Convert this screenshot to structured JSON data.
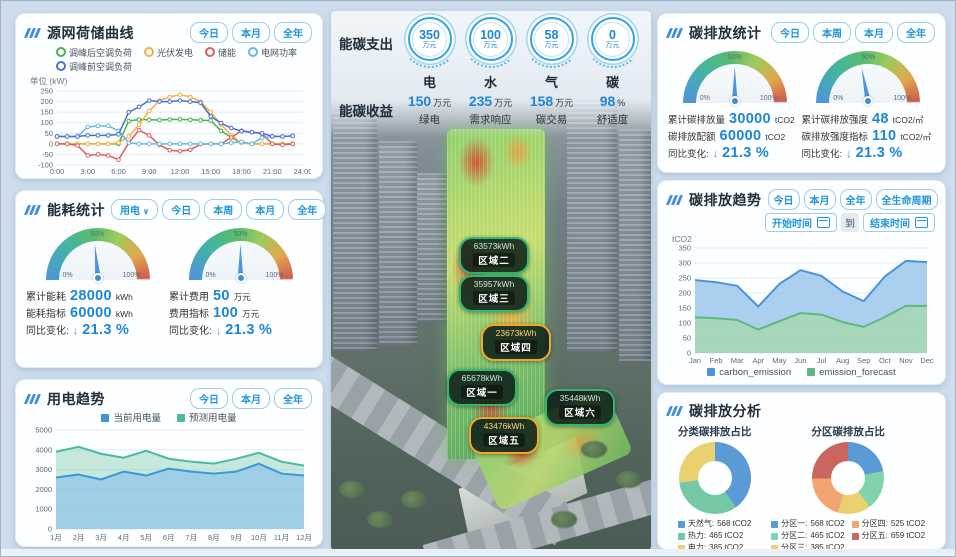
{
  "icons": {
    "down_arrow": "↓",
    "chevron_down": "∨"
  },
  "left": {
    "grid_curve": {
      "title": "源网荷储曲线",
      "buttons": [
        "今日",
        "本月",
        "全年"
      ]
    },
    "energy_stats": {
      "title": "能耗统计",
      "dropdown": "用电",
      "buttons": [
        "今日",
        "本周",
        "本月",
        "全年"
      ],
      "gauges": [
        {
          "pct": 47,
          "p0": "0%",
          "p50": "50%",
          "p100": "100%",
          "rows": [
            {
              "label": "累计能耗",
              "value": "28000",
              "unit": "kWh"
            },
            {
              "label": "能耗指标",
              "value": "60000",
              "unit": "kWh"
            }
          ],
          "yoy_label": "同比变化:",
          "yoy_value": "21.3 %"
        },
        {
          "pct": 50,
          "p0": "0%",
          "p50": "50%",
          "p100": "100%",
          "rows": [
            {
              "label": "累计费用",
              "value": "50",
              "unit": "万元"
            },
            {
              "label": "费用指标",
              "value": "100",
              "unit": "万元"
            }
          ],
          "yoy_label": "同比变化:",
          "yoy_value": "21.3 %"
        }
      ]
    },
    "power_trend": {
      "title": "用电趋势",
      "buttons": [
        "今日",
        "本月",
        "全年"
      ]
    }
  },
  "center": {
    "expense_label": "能碳支出",
    "income_label": "能碳收益",
    "expense_items": [
      {
        "value": "350",
        "unit": "万元",
        "name": "电"
      },
      {
        "value": "100",
        "unit": "万元",
        "name": "水"
      },
      {
        "value": "58",
        "unit": "万元",
        "name": "气"
      },
      {
        "value": "0",
        "unit": "万元",
        "name": "碳"
      }
    ],
    "income_items": [
      {
        "value": "150",
        "unit": "万元",
        "name": "绿电"
      },
      {
        "value": "235",
        "unit": "万元",
        "name": "需求响应"
      },
      {
        "value": "158",
        "unit": "万元",
        "name": "碳交易"
      },
      {
        "value": "98",
        "unit": "%",
        "name": "舒适度"
      }
    ],
    "regions": [
      {
        "kwh": "63573kWh",
        "name": "区域二",
        "border": "#2eb872"
      },
      {
        "kwh": "35957kWh",
        "name": "区域三",
        "border": "#2eb872"
      },
      {
        "kwh": "23673kWh",
        "name": "区域四",
        "border": "#f0a828"
      },
      {
        "kwh": "65678kWh",
        "name": "区域一",
        "border": "#2eb872"
      },
      {
        "kwh": "35448kWh",
        "name": "区域六",
        "border": "#2eb872"
      },
      {
        "kwh": "43476kWh",
        "name": "区域五",
        "border": "#f0a828"
      }
    ]
  },
  "right": {
    "carbon_stats": {
      "title": "碳排放统计",
      "buttons": [
        "今日",
        "本周",
        "本月",
        "全年"
      ],
      "gauges": [
        {
          "pct": 50,
          "p0": "0%",
          "p50": "50%",
          "p100": "100%",
          "rows": [
            {
              "label": "累计碳排放量",
              "value": "30000",
              "unit": "tCO2"
            },
            {
              "label": "碳排放配额",
              "value": "60000",
              "unit": "tCO2"
            }
          ],
          "yoy_label": "同比变化:",
          "yoy_value": "21.3 %"
        },
        {
          "pct": 44,
          "p0": "0%",
          "p50": "50%",
          "p100": "100%",
          "rows": [
            {
              "label": "累计碳排放强度",
              "value": "48",
              "unit": "tCO2/㎡"
            },
            {
              "label": "碳排放强度指标",
              "value": "110",
              "unit": "tCO2/㎡"
            }
          ],
          "yoy_label": "同比变化:",
          "yoy_value": "21.3 %"
        }
      ]
    },
    "carbon_trend": {
      "title": "碳排放趋势",
      "buttons": [
        "今日",
        "本月",
        "全年",
        "全生命周期"
      ],
      "start_label": "开始时间",
      "to_label": "到",
      "end_label": "结束时间"
    },
    "carbon_analysis": {
      "title": "碳排放分析"
    }
  },
  "chart_data": [
    {
      "id": "grid_curve",
      "type": "line",
      "title": "源网荷储曲线",
      "ylabel": "单位 (kW)",
      "ylim": [
        -100,
        250
      ],
      "yticks": [
        250,
        200,
        150,
        100,
        50,
        0,
        -50,
        -100
      ],
      "xmax": 24,
      "x_labels": [
        "0:00",
        "3:00",
        "6:00",
        "9:00",
        "12:00",
        "15:00",
        "18:00",
        "21:00",
        "24:00"
      ],
      "series": [
        {
          "name": "调峰后空调负荷",
          "color": "#4caf50",
          "marker": true,
          "values": [
            0,
            0,
            0,
            0,
            0,
            0,
            0,
            108,
            115,
            114,
            113,
            115,
            116,
            114,
            112,
            110,
            62,
            30,
            5,
            0,
            0,
            0,
            0,
            0
          ]
        },
        {
          "name": "光伏发电",
          "color": "#f5b041",
          "marker": true,
          "values": [
            0,
            0,
            0,
            0,
            0,
            0,
            5,
            35,
            90,
            155,
            205,
            222,
            232,
            222,
            200,
            150,
            92,
            40,
            5,
            0,
            0,
            0,
            0,
            0
          ]
        },
        {
          "name": "储能",
          "color": "#e05c5c",
          "marker": true,
          "values": [
            0,
            0,
            -8,
            -55,
            -50,
            -55,
            -75,
            5,
            65,
            40,
            -5,
            -30,
            -35,
            -28,
            -2,
            0,
            0,
            30,
            62,
            55,
            48,
            0,
            -5,
            0
          ]
        },
        {
          "name": "电网功率",
          "color": "#64b9e4",
          "marker": true,
          "values": [
            35,
            35,
            35,
            80,
            85,
            85,
            62,
            5,
            0,
            0,
            0,
            0,
            0,
            0,
            0,
            0,
            0,
            5,
            10,
            0,
            28,
            35,
            35,
            38
          ]
        },
        {
          "name": "调峰前空调负荷",
          "color": "#4a6fd0",
          "marker": true,
          "values": [
            35,
            35,
            35,
            40,
            40,
            40,
            45,
            150,
            175,
            205,
            200,
            200,
            205,
            200,
            195,
            130,
            98,
            75,
            60,
            55,
            50,
            36,
            35,
            38
          ]
        }
      ]
    },
    {
      "id": "power_trend",
      "type": "area",
      "title": "用电趋势",
      "ylim": [
        0,
        5000
      ],
      "yticks": [
        5000,
        4000,
        3000,
        2000,
        1000,
        0
      ],
      "categories": [
        "1月",
        "2月",
        "3月",
        "4月",
        "5月",
        "6月",
        "7月",
        "8月",
        "9月",
        "10月",
        "11月",
        "12月"
      ],
      "series": [
        {
          "name": "预测用电量",
          "color": "#4cb8a4",
          "fill": "rgba(150,214,190,0.55)",
          "width": 2,
          "values": [
            3900,
            4150,
            3800,
            3600,
            3950,
            3550,
            3400,
            3300,
            3550,
            3850,
            3400,
            3200
          ]
        },
        {
          "name": "当前用电量",
          "color": "#3d95dd",
          "fill": "rgba(130,185,235,0.55)",
          "width": 2,
          "values": [
            2600,
            2750,
            2500,
            2900,
            2700,
            3050,
            2900,
            2800,
            2900,
            3300,
            2800,
            2700
          ]
        }
      ]
    },
    {
      "id": "carbon_trend",
      "type": "area",
      "title": "碳排放趋势",
      "ylabel": "tCO2",
      "ylim": [
        0,
        350
      ],
      "yticks": [
        350,
        300,
        250,
        200,
        150,
        100,
        50,
        0
      ],
      "categories": [
        "Jan",
        "Feb",
        "Mar",
        "Apr",
        "May",
        "Jun",
        "Jul",
        "Aug",
        "Sep",
        "Oct",
        "Nov",
        "Dec"
      ],
      "series": [
        {
          "name": "carbon_emission",
          "color": "#4a93d9",
          "fill": "rgba(150,195,235,0.8)",
          "width": 2,
          "values": [
            243,
            236,
            224,
            155,
            230,
            276,
            257,
            205,
            173,
            255,
            307,
            303
          ]
        },
        {
          "name": "emission_forecast",
          "color": "#5cb87e",
          "fill": "rgba(165,215,180,0.9)",
          "width": 2,
          "values": [
            119,
            116,
            110,
            78,
            106,
            133,
            128,
            103,
            87,
            120,
            157,
            157
          ]
        }
      ]
    },
    {
      "id": "category_donut",
      "type": "donut",
      "title": "分类碳排放占比",
      "slices": [
        {
          "label": "天然气",
          "value": 568,
          "amount": "568 tCO2",
          "color": "#5b9bd5"
        },
        {
          "label": "热力",
          "value": 465,
          "amount": "465 tCO2",
          "color": "#74c9a4"
        },
        {
          "label": "电力",
          "value": 385,
          "amount": "385 tCO2",
          "color": "#e8d16e"
        }
      ]
    },
    {
      "id": "zone_donut",
      "type": "donut",
      "title": "分区碳排放占比",
      "slices": [
        {
          "label": "分区一",
          "value": 568,
          "amount": "568 tCO2",
          "color": "#5b9bd5"
        },
        {
          "label": "分区二",
          "value": 465,
          "amount": "465 tCO2",
          "color": "#82d3ab"
        },
        {
          "label": "分区三",
          "value": 385,
          "amount": "385 tCO2",
          "color": "#e8d16e"
        },
        {
          "label": "分区四",
          "value": 525,
          "amount": "525 tCO2",
          "color": "#f2a570"
        },
        {
          "label": "分区五",
          "value": 659,
          "amount": "659 tCO2",
          "color": "#cb6560"
        }
      ]
    }
  ]
}
